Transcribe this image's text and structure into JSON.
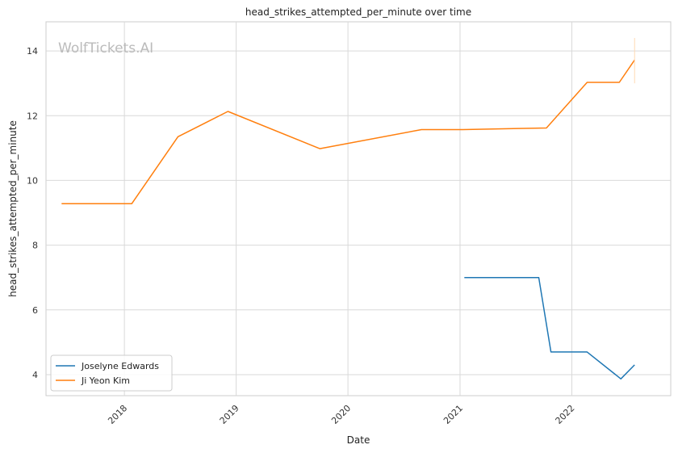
{
  "watermark": "WolfTickets.AI",
  "chart_data": {
    "type": "line",
    "title": "head_strikes_attempted_per_minute over time",
    "xlabel": "Date",
    "ylabel": "head_strikes_attempted_per_minute",
    "x_ticks": [
      "2018",
      "2019",
      "2020",
      "2021",
      "2022"
    ],
    "y_ticks": [
      4,
      6,
      8,
      10,
      12,
      14
    ],
    "xlim": [
      "2017-04-20",
      "2022-11-20"
    ],
    "ylim": [
      3.35,
      14.9
    ],
    "grid": true,
    "legend_position": "lower-left",
    "series": [
      {
        "name": "Joselyne Edwards",
        "color": "#1f77b4",
        "points": [
          [
            "2021-01-15",
            7.0
          ],
          [
            "2021-09-15",
            7.0
          ],
          [
            "2021-10-25",
            4.7
          ],
          [
            "2022-02-20",
            4.7
          ],
          [
            "2022-06-10",
            3.87
          ],
          [
            "2022-07-25",
            4.3
          ]
        ]
      },
      {
        "name": "Ji Yeon Kim",
        "color": "#ff7f0e",
        "points": [
          [
            "2017-06-10",
            9.28
          ],
          [
            "2018-01-25",
            9.28
          ],
          [
            "2018-06-25",
            11.35
          ],
          [
            "2018-12-05",
            12.13
          ],
          [
            "2019-10-01",
            10.98
          ],
          [
            "2020-08-28",
            11.57
          ],
          [
            "2021-01-10",
            11.57
          ],
          [
            "2021-10-10",
            11.62
          ],
          [
            "2022-02-20",
            13.03
          ],
          [
            "2022-06-05",
            13.03
          ],
          [
            "2022-07-25",
            13.72
          ]
        ]
      }
    ]
  }
}
